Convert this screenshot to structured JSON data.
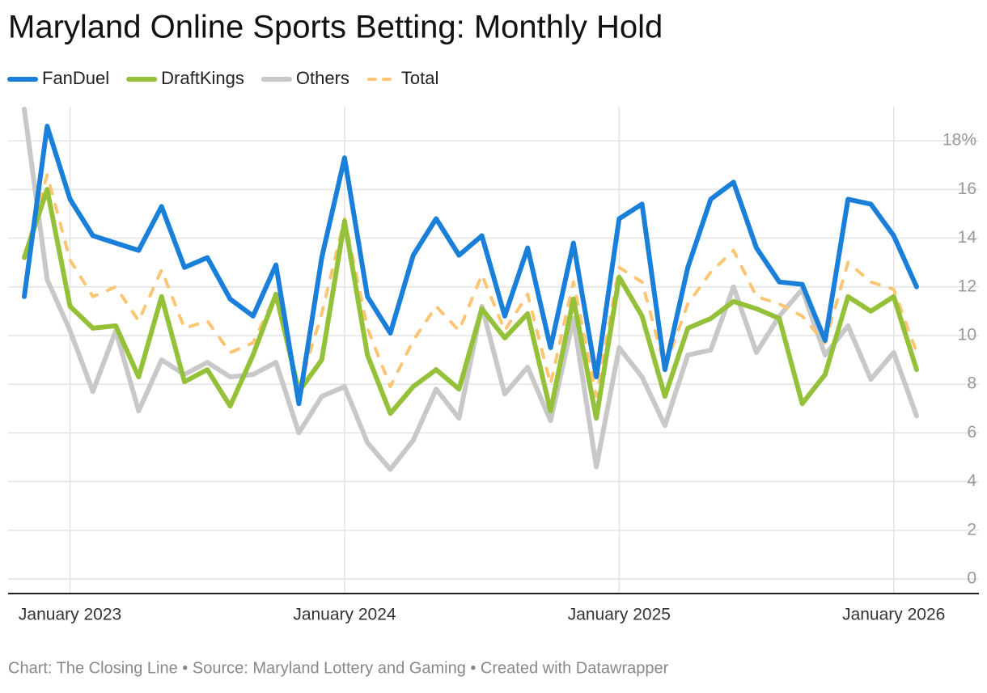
{
  "chart_data": {
    "type": "line",
    "title": "Maryland Online Sports Betting: Monthly Hold",
    "footer": "Chart: The Closing Line • Source: Maryland Lottery and Gaming • Created with Datawrapper",
    "x": [
      "2022-11",
      "2022-12",
      "2023-01",
      "2023-02",
      "2023-03",
      "2023-04",
      "2023-05",
      "2023-06",
      "2023-07",
      "2023-08",
      "2023-09",
      "2023-10",
      "2023-11",
      "2023-12",
      "2024-01",
      "2024-02",
      "2024-03",
      "2024-04",
      "2024-05",
      "2024-06",
      "2024-07",
      "2024-08",
      "2024-09",
      "2024-10",
      "2024-11",
      "2024-12",
      "2025-01",
      "2025-02",
      "2025-03",
      "2025-04",
      "2025-05",
      "2025-06",
      "2025-07",
      "2025-08",
      "2025-09",
      "2025-10",
      "2025-11",
      "2025-12",
      "2026-01",
      "2026-02"
    ],
    "series": [
      {
        "name": "Others",
        "color": "#c8c8c8",
        "line_style": "solid",
        "values": [
          19.3,
          12.3,
          10.2,
          7.7,
          10.2,
          6.9,
          9.0,
          8.4,
          8.9,
          8.3,
          8.4,
          8.9,
          6.0,
          7.5,
          7.9,
          5.6,
          4.5,
          5.7,
          7.8,
          6.6,
          11.2,
          7.6,
          8.7,
          6.5,
          10.7,
          4.6,
          9.5,
          8.3,
          6.3,
          9.2,
          9.4,
          12.0,
          9.3,
          10.8,
          11.9,
          9.2,
          10.4,
          8.2,
          9.3,
          6.7
        ]
      },
      {
        "name": "Total",
        "color": "#fcc574",
        "line_style": "dashed",
        "values": [
          13.2,
          16.6,
          13.1,
          11.6,
          12.0,
          10.6,
          12.7,
          10.3,
          10.6,
          9.3,
          9.7,
          11.7,
          7.8,
          10.9,
          14.8,
          10.3,
          7.9,
          9.8,
          11.2,
          10.2,
          12.5,
          10.2,
          11.7,
          8.0,
          12.2,
          7.5,
          12.8,
          12.2,
          8.7,
          11.3,
          12.6,
          13.5,
          11.6,
          11.3,
          10.8,
          9.7,
          13.0,
          12.2,
          11.9,
          9.3
        ]
      },
      {
        "name": "DraftKings",
        "color": "#95c13a",
        "line_style": "solid",
        "values": [
          13.2,
          16.0,
          11.2,
          10.3,
          10.4,
          8.3,
          11.6,
          8.1,
          8.6,
          7.1,
          9.2,
          11.7,
          7.7,
          9.0,
          14.7,
          9.2,
          6.8,
          7.9,
          8.6,
          7.8,
          11.1,
          9.9,
          10.9,
          6.9,
          11.5,
          6.6,
          12.4,
          10.8,
          7.5,
          10.3,
          10.7,
          11.4,
          11.1,
          10.7,
          7.2,
          8.4,
          11.6,
          11.0,
          11.6,
          8.6
        ]
      },
      {
        "name": "FanDuel",
        "color": "#1a7fd9",
        "line_style": "solid",
        "values": [
          11.6,
          18.6,
          15.6,
          14.1,
          13.8,
          13.5,
          15.3,
          12.8,
          13.2,
          11.5,
          10.8,
          12.9,
          7.2,
          13.2,
          17.3,
          11.6,
          10.1,
          13.3,
          14.8,
          13.3,
          14.1,
          10.8,
          13.6,
          9.5,
          13.8,
          8.3,
          14.8,
          15.4,
          8.6,
          12.8,
          15.6,
          16.3,
          13.6,
          12.2,
          12.1,
          9.8,
          15.6,
          15.4,
          14.1,
          12.0
        ]
      }
    ],
    "legend_order": [
      3,
      2,
      0,
      1
    ],
    "xlim": [
      "2022-11",
      "2026-02"
    ],
    "xticks": [
      {
        "value": "2023-01",
        "label": "January 2023"
      },
      {
        "value": "2024-01",
        "label": "January 2024"
      },
      {
        "value": "2025-01",
        "label": "January 2025"
      },
      {
        "value": "2026-01",
        "label": "January 2026"
      }
    ],
    "ylim": [
      -0.6,
      19.4
    ],
    "yticks": [
      0,
      2,
      4,
      6,
      8,
      10,
      12,
      14,
      16,
      {
        "value": 18,
        "label": "18%"
      }
    ],
    "grid": true
  }
}
